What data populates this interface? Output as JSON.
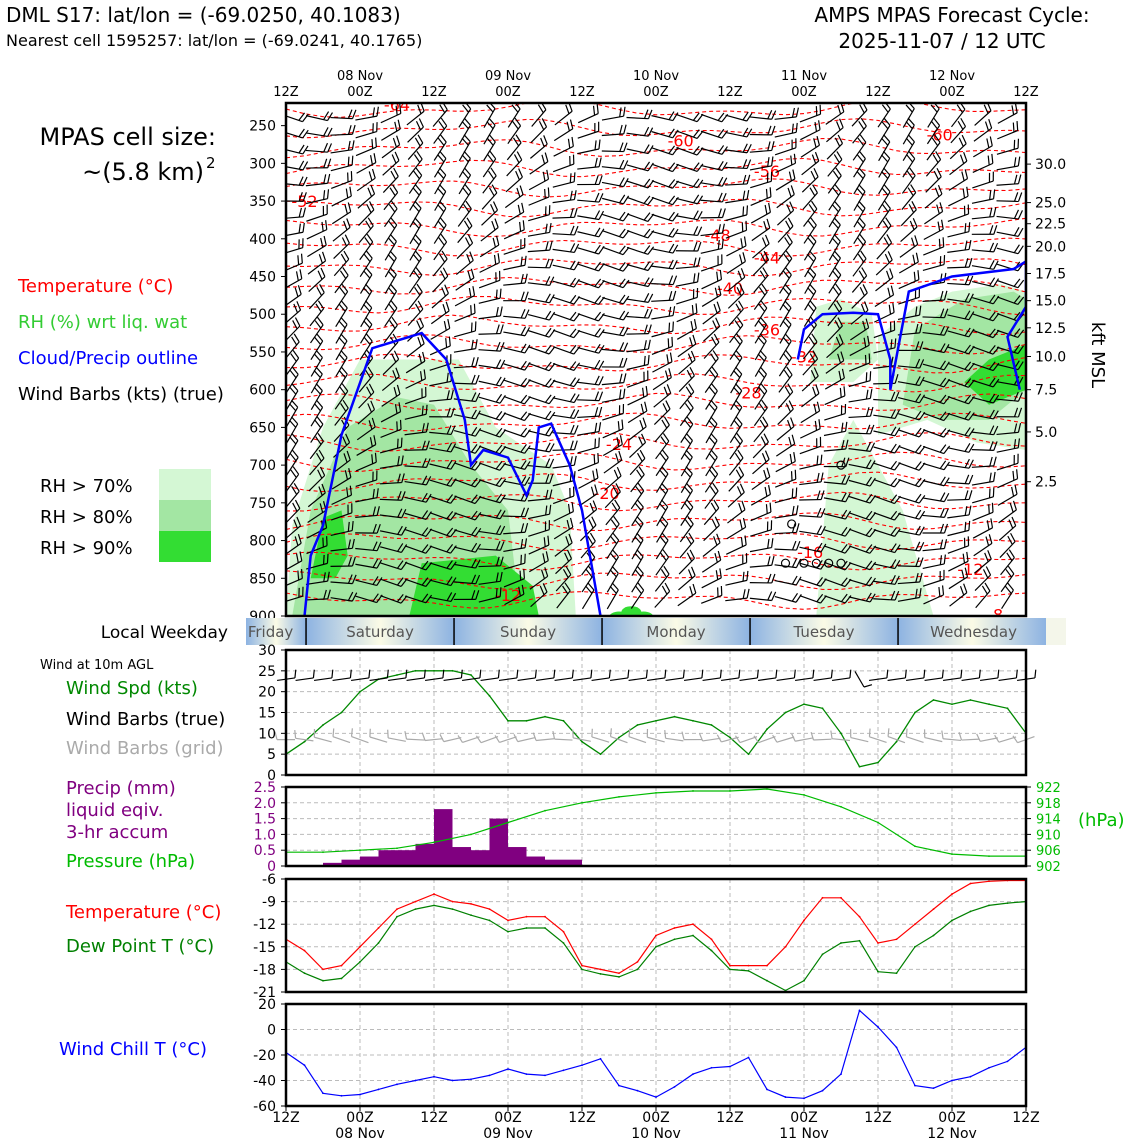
{
  "header": {
    "station_line": "DML S17: lat/lon = (-69.0250, 40.1083)",
    "cell_line": "Nearest cell 1595257: lat/lon = (-69.0241, 40.1765)",
    "cycle_title": "AMPS MPAS Forecast Cycle:",
    "cycle_time": "2025-11-07 / 12 UTC"
  },
  "cell_size": {
    "line1": "MPAS cell size:",
    "line2": "~(5.8 km)",
    "sup": "2"
  },
  "legend_top": {
    "temperature": "Temperature (°C)",
    "rh": "RH (%) wrt liq. wat",
    "cloud": "Cloud/Precip outline",
    "barbs": "Wind Barbs (kts) (true)",
    "rh70": "RH > 70%",
    "rh80": "RH > 80%",
    "rh90": "RH > 90%"
  },
  "colors": {
    "temperature": "#ff0000",
    "rh_label": "#33cc33",
    "cloud": "#0000ff",
    "rh70": "#d4f7d4",
    "rh80": "#a3e6a3",
    "rh90": "#33dd33",
    "speed": "#008800",
    "barbs_grid": "#aaaaaa",
    "precip": "#800080",
    "pressure": "#00bb00",
    "dewpoint": "#008000",
    "windchill": "#0000ff"
  },
  "time_axis": {
    "top_ticks": [
      "12Z",
      "00Z",
      "12Z",
      "00Z",
      "12Z",
      "00Z",
      "12Z",
      "00Z",
      "12Z",
      "00Z",
      "12Z"
    ],
    "dates": [
      "08 Nov",
      "09 Nov",
      "10 Nov",
      "11 Nov",
      "12 Nov"
    ]
  },
  "weekday": {
    "label": "Local Weekday",
    "days": [
      "Friday",
      "Saturday",
      "Sunday",
      "Monday",
      "Tuesday",
      "Wednesday"
    ]
  },
  "panel_labels": {
    "wind_at": "Wind at 10m AGL",
    "wind_spd": "Wind Spd (kts)",
    "wind_barbs_true": "Wind Barbs (true)",
    "wind_barbs_grid": "Wind Barbs (grid)",
    "precip1": "Precip (mm)",
    "precip2": "liquid eqiv.",
    "precip3": "3-hr accum",
    "pressure": "Pressure (hPa)",
    "pressure_unit": "(hPa)",
    "temp": "Temperature (°C)",
    "dewpoint": "Dew Point T (°C)",
    "windchill": "Wind Chill T (°C)"
  },
  "chart_data": [
    {
      "type": "heatmap",
      "name": "time-height cross-section",
      "x_hours": [
        0,
        120
      ],
      "y_label_left": "pressure (hPa)",
      "y_ticks_left": [
        "250",
        "300",
        "350",
        "400",
        "450",
        "500",
        "550",
        "600",
        "650",
        "700",
        "750",
        "800",
        "850",
        "900"
      ],
      "ylim_hpa": [
        900,
        220
      ],
      "y_label_right": "kft MSL",
      "y_ticks_right": [
        {
          "label": "30.0",
          "p": 301
        },
        {
          "label": "25.0",
          "p": 352
        },
        {
          "label": "22.5",
          "p": 380
        },
        {
          "label": "20.0",
          "p": 410
        },
        {
          "label": "17.5",
          "p": 446
        },
        {
          "label": "15.0",
          "p": 482
        },
        {
          "label": "12.5",
          "p": 518
        },
        {
          "label": "10.0",
          "p": 556
        },
        {
          "label": "7.5",
          "p": 600
        },
        {
          "label": "5.0",
          "p": 656
        },
        {
          "label": "2.5",
          "p": 722
        }
      ],
      "isotherm_labels": [
        {
          "v": "-64",
          "t": 18,
          "p": 222
        },
        {
          "v": "-60",
          "t": 64,
          "p": 270
        },
        {
          "v": "-60",
          "t": 106,
          "p": 262
        },
        {
          "v": "-56",
          "t": 78,
          "p": 310
        },
        {
          "v": "-52",
          "t": 3,
          "p": 350
        },
        {
          "v": "-48",
          "t": 70,
          "p": 395
        },
        {
          "v": "-44",
          "t": 78,
          "p": 425
        },
        {
          "v": "-40",
          "t": 72,
          "p": 465
        },
        {
          "v": "-36",
          "t": 78,
          "p": 520
        },
        {
          "v": "-32",
          "t": 84,
          "p": 556
        },
        {
          "v": "-28",
          "t": 75,
          "p": 604
        },
        {
          "v": "-24",
          "t": 54,
          "p": 672
        },
        {
          "v": "-20",
          "t": 52,
          "p": 737
        },
        {
          "v": "-16",
          "t": 85,
          "p": 815
        },
        {
          "v": "-12",
          "t": 36,
          "p": 872
        },
        {
          "v": "-12",
          "t": 111,
          "p": 838
        },
        {
          "v": "-8",
          "t": 115,
          "p": 898
        }
      ],
      "rh_regions": [
        {
          "level": 70,
          "pts": [
            [
              0,
              900
            ],
            [
              1,
              780
            ],
            [
              6,
              650
            ],
            [
              12,
              560
            ],
            [
              28,
              560
            ],
            [
              34,
              650
            ],
            [
              43,
              700
            ],
            [
              46,
              760
            ],
            [
              47,
              900
            ]
          ]
        },
        {
          "level": 70,
          "pts": [
            [
              86,
              900
            ],
            [
              88,
              700
            ],
            [
              92,
              640
            ],
            [
              100,
              760
            ],
            [
              105,
              900
            ]
          ]
        },
        {
          "level": 70,
          "pts": [
            [
              96,
              660
            ],
            [
              96,
              530
            ],
            [
              102,
              490
            ],
            [
              108,
              470
            ],
            [
              116,
              460
            ],
            [
              120,
              470
            ],
            [
              120,
              680
            ],
            [
              112,
              670
            ],
            [
              104,
              640
            ]
          ]
        },
        {
          "level": 70,
          "pts": [
            [
              85,
              590
            ],
            [
              86,
              490
            ],
            [
              90,
              480
            ],
            [
              95,
              500
            ],
            [
              96,
              560
            ],
            [
              92,
              590
            ]
          ]
        },
        {
          "level": 80,
          "pts": [
            [
              1,
              900
            ],
            [
              4,
              760
            ],
            [
              10,
              650
            ],
            [
              18,
              610
            ],
            [
              24,
              620
            ],
            [
              30,
              700
            ],
            [
              36,
              760
            ],
            [
              38,
              900
            ]
          ]
        },
        {
          "level": 80,
          "pts": [
            [
              100,
              620
            ],
            [
              102,
              520
            ],
            [
              110,
              480
            ],
            [
              118,
              470
            ],
            [
              120,
              480
            ],
            [
              120,
              600
            ],
            [
              114,
              640
            ],
            [
              106,
              640
            ]
          ]
        },
        {
          "level": 80,
          "pts": [
            [
              88,
              560
            ],
            [
              90,
              510
            ],
            [
              94,
              510
            ],
            [
              95,
              560
            ]
          ]
        },
        {
          "level": 90,
          "pts": [
            [
              4,
              850
            ],
            [
              6,
              770
            ],
            [
              9,
              760
            ],
            [
              10,
              820
            ],
            [
              8,
              850
            ]
          ]
        },
        {
          "level": 90,
          "pts": [
            [
              20,
              900
            ],
            [
              22,
              830
            ],
            [
              34,
              820
            ],
            [
              40,
              860
            ],
            [
              41,
              900
            ]
          ]
        },
        {
          "level": 90,
          "pts": [
            [
              110,
              590
            ],
            [
              114,
              560
            ],
            [
              120,
              540
            ],
            [
              120,
              600
            ],
            [
              114,
              620
            ]
          ]
        }
      ],
      "cloud_outlines": [
        [
          [
            3,
            900
          ],
          [
            4,
            820
          ],
          [
            6,
            780
          ],
          [
            9,
            660
          ],
          [
            14,
            545
          ],
          [
            22,
            525
          ],
          [
            26,
            560
          ],
          [
            29,
            640
          ],
          [
            30,
            700
          ],
          [
            32,
            680
          ],
          [
            36,
            690
          ],
          [
            39,
            740
          ],
          [
            40,
            720
          ],
          [
            41,
            650
          ],
          [
            43,
            645
          ],
          [
            46,
            700
          ],
          [
            48,
            760
          ],
          [
            51,
            900
          ]
        ],
        [
          [
            83,
            560
          ],
          [
            84,
            520
          ],
          [
            87,
            500
          ],
          [
            92,
            498
          ],
          [
            96,
            500
          ],
          [
            98,
            560
          ],
          [
            98,
            600
          ],
          [
            101,
            470
          ],
          [
            108,
            450
          ],
          [
            118,
            440
          ],
          [
            120,
            430
          ],
          [
            120,
            490
          ],
          [
            117,
            530
          ],
          [
            119,
            600
          ]
        ]
      ],
      "precip_blobs": [
        [
          54,
          902
        ],
        [
          56,
          895
        ],
        [
          58,
          902
        ]
      ]
    },
    {
      "type": "line",
      "name": "10 m wind speed",
      "x_hours": [
        0,
        3,
        6,
        9,
        12,
        15,
        18,
        21,
        24,
        27,
        30,
        33,
        36,
        39,
        42,
        45,
        48,
        51,
        54,
        57,
        60,
        63,
        66,
        69,
        72,
        75,
        78,
        81,
        84,
        87,
        90,
        93,
        96,
        99,
        102,
        105,
        108,
        111,
        114,
        117,
        120
      ],
      "series": [
        {
          "name": "Wind Spd (kts)",
          "values": [
            5,
            8,
            12,
            15,
            20,
            23,
            24,
            25,
            25,
            25,
            24,
            19,
            13,
            13,
            14,
            13,
            8,
            5,
            9,
            12,
            13,
            14,
            13,
            12,
            9,
            5,
            11,
            15,
            17,
            16,
            10,
            2,
            3,
            8,
            15,
            18,
            17,
            18,
            17,
            16,
            10
          ]
        }
      ],
      "ylim": [
        0,
        30
      ],
      "yticks": [
        "0",
        "5",
        "10",
        "15",
        "20",
        "25",
        "30"
      ]
    },
    {
      "type": "bar",
      "name": "3-hr precipitation and pressure",
      "precip_x_hours": [
        6,
        9,
        12,
        15,
        18,
        21,
        24,
        27,
        30,
        33,
        36,
        39,
        42,
        45
      ],
      "precip_values": [
        0.1,
        0.2,
        0.3,
        0.5,
        0.5,
        0.7,
        1.8,
        0.6,
        0.5,
        1.5,
        0.6,
        0.3,
        0.2,
        0.2
      ],
      "precip_ylim": [
        0,
        2.5
      ],
      "precip_ticks": [
        "0",
        "0.5",
        "1.0",
        "1.5",
        "2.0",
        "2.5"
      ],
      "pressure_x_hours": [
        0,
        6,
        12,
        18,
        24,
        30,
        36,
        42,
        48,
        54,
        60,
        66,
        72,
        78,
        84,
        90,
        96,
        102,
        108,
        114,
        120
      ],
      "pressure_values": [
        905.5,
        905.5,
        906,
        906.5,
        908,
        910,
        913,
        916,
        918,
        919.5,
        920.5,
        921,
        921,
        921.5,
        920,
        917,
        913,
        907,
        905,
        904.5,
        904.5
      ],
      "pressure_ylim": [
        902,
        922
      ],
      "pressure_ticks": [
        "922",
        "918",
        "914",
        "910",
        "906",
        "902"
      ]
    },
    {
      "type": "line",
      "name": "temperature and dew point",
      "x_hours": [
        0,
        3,
        6,
        9,
        12,
        15,
        18,
        21,
        24,
        27,
        30,
        33,
        36,
        39,
        42,
        45,
        48,
        51,
        54,
        57,
        60,
        63,
        66,
        69,
        72,
        75,
        78,
        81,
        84,
        87,
        90,
        93,
        96,
        99,
        102,
        105,
        108,
        111,
        114,
        117,
        120
      ],
      "series": [
        {
          "name": "Temperature (°C)",
          "values": [
            -14,
            -15.5,
            -18,
            -17.5,
            -15,
            -12.5,
            -10,
            -9,
            -8,
            -9,
            -9.3,
            -10,
            -11.5,
            -11,
            -11,
            -13,
            -17.5,
            -18,
            -18.5,
            -17,
            -13.5,
            -12.5,
            -12,
            -14,
            -17.5,
            -17.5,
            -17.5,
            -15,
            -11.5,
            -8.5,
            -8.5,
            -11,
            -14.5,
            -14,
            -12,
            -10,
            -8,
            -6.6,
            -6.3,
            -6.2,
            -6.2
          ]
        },
        {
          "name": "Dew Point T (°C)",
          "values": [
            -17,
            -18.5,
            -19.5,
            -19.2,
            -17,
            -14.5,
            -11,
            -10,
            -9.5,
            -10,
            -10.8,
            -11.5,
            -13,
            -12.5,
            -12.5,
            -14.5,
            -18,
            -18.6,
            -19,
            -18,
            -15,
            -14,
            -13.5,
            -15.5,
            -18,
            -18.2,
            -19.5,
            -20.8,
            -19.5,
            -16,
            -14.5,
            -14.2,
            -18.3,
            -18.5,
            -15,
            -13.5,
            -11.5,
            -10.3,
            -9.5,
            -9.2,
            -9
          ]
        }
      ],
      "ylim": [
        -21,
        -6
      ],
      "yticks": [
        "-21",
        "-18",
        "-15",
        "-12",
        "-9",
        "-6"
      ]
    },
    {
      "type": "line",
      "name": "wind chill",
      "x_hours": [
        0,
        3,
        6,
        9,
        12,
        15,
        18,
        21,
        24,
        27,
        30,
        33,
        36,
        39,
        42,
        45,
        48,
        51,
        54,
        57,
        60,
        63,
        66,
        69,
        72,
        75,
        78,
        81,
        84,
        87,
        90,
        93,
        96,
        99,
        102,
        105,
        108,
        111,
        114,
        117,
        120
      ],
      "series": [
        {
          "name": "Wind Chill T (°C)",
          "values": [
            -18,
            -28,
            -50,
            -52,
            -51,
            -47,
            -43,
            -40,
            -37,
            -40,
            -39,
            -36,
            -31,
            -35,
            -36,
            -32,
            -28,
            -23,
            -44,
            -48,
            -53,
            -45,
            -35,
            -30,
            -29,
            -22,
            -47,
            -53,
            -54,
            -48,
            -35,
            15,
            2,
            -14,
            -44,
            -46,
            -40,
            -37,
            -30,
            -25,
            -14
          ]
        }
      ],
      "ylim": [
        -60,
        20
      ],
      "yticks": [
        "-60",
        "-40",
        "-20",
        "0",
        "20"
      ]
    }
  ]
}
